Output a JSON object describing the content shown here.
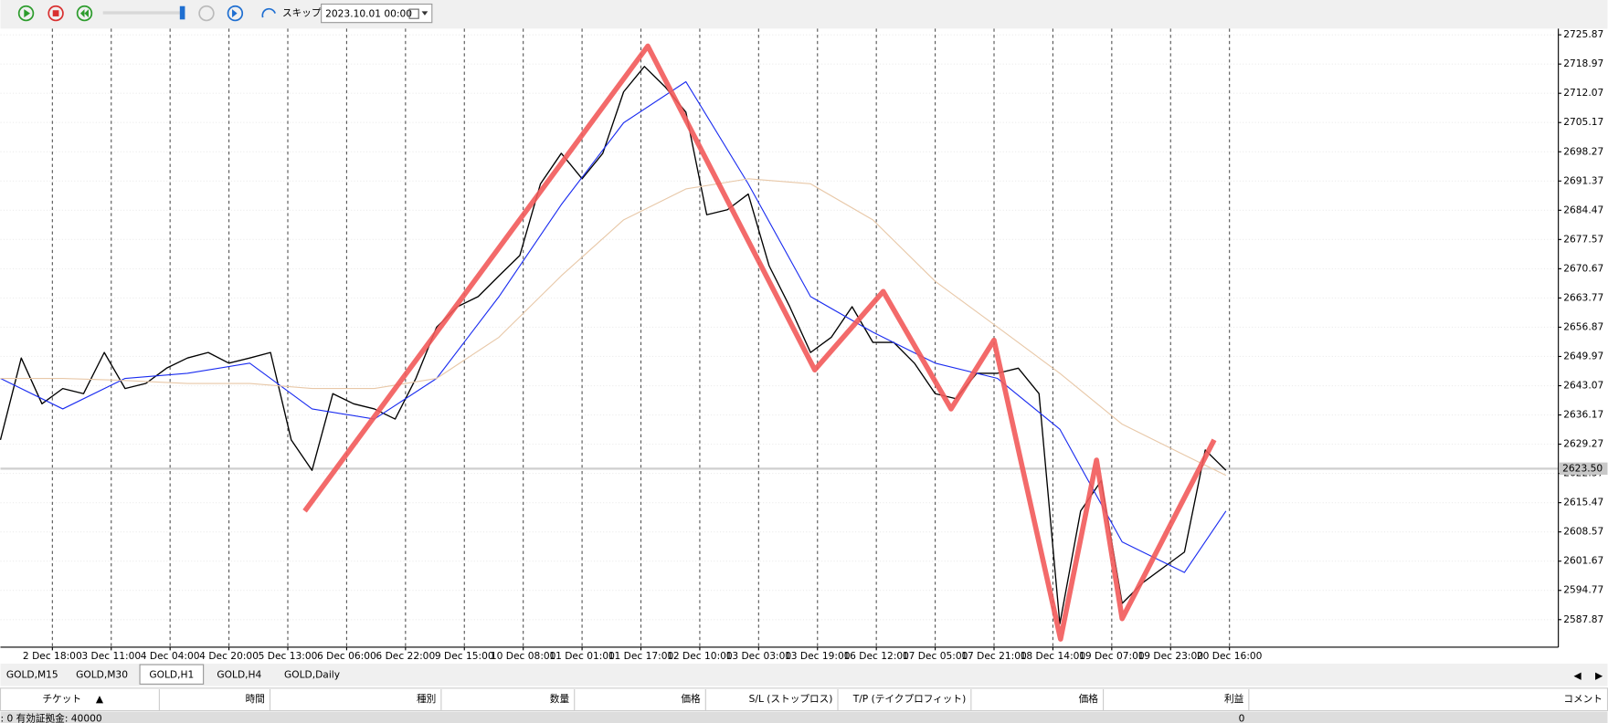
{
  "toolbar": {
    "skip": "スキップ",
    "date": "2023.10.01 00:00"
  },
  "chart_data": {
    "type": "line",
    "grid": true,
    "xlim": [
      0,
      450
    ],
    "ylim": [
      2581.36,
      2727.32
    ],
    "xticks": [
      {
        "value": 15,
        "label": "2 Dec 18:00"
      },
      {
        "value": 32,
        "label": "3 Dec 11:00"
      },
      {
        "value": 49,
        "label": "4 Dec 04:00"
      },
      {
        "value": 66,
        "label": "4 Dec 20:00"
      },
      {
        "value": 83,
        "label": "5 Dec 13:00"
      },
      {
        "value": 100,
        "label": "6 Dec 06:00"
      },
      {
        "value": 117,
        "label": "6 Dec 22:00"
      },
      {
        "value": 134,
        "label": "9 Dec 15:00"
      },
      {
        "value": 151,
        "label": "10 Dec 08:00"
      },
      {
        "value": 168,
        "label": "11 Dec 01:00"
      },
      {
        "value": 185,
        "label": "11 Dec 17:00"
      },
      {
        "value": 202,
        "label": "12 Dec 10:00"
      },
      {
        "value": 219,
        "label": "13 Dec 03:00"
      },
      {
        "value": 236,
        "label": "13 Dec 19:00"
      },
      {
        "value": 253,
        "label": "16 Dec 12:00"
      },
      {
        "value": 270,
        "label": "17 Dec 05:00"
      },
      {
        "value": 287,
        "label": "17 Dec 21:00"
      },
      {
        "value": 304,
        "label": "18 Dec 14:00"
      },
      {
        "value": 321,
        "label": "19 Dec 07:00"
      },
      {
        "value": 338,
        "label": "19 Dec 23:00"
      },
      {
        "value": 355,
        "label": "20 Dec 16:00"
      }
    ],
    "yticks": [
      2725.87,
      2718.97,
      2712.07,
      2705.17,
      2698.27,
      2691.37,
      2684.47,
      2677.57,
      2670.67,
      2663.77,
      2656.87,
      2649.97,
      2643.07,
      2636.17,
      2629.27,
      2622.37,
      2615.47,
      2608.57,
      2601.67,
      2594.77,
      2587.87
    ],
    "current_price": {
      "value": 2623.5,
      "label": "2623.50"
    },
    "series": [
      {
        "color": "#000000",
        "x": [
          0,
          6,
          12,
          18,
          24,
          30,
          36,
          42,
          48,
          54,
          60,
          66,
          72,
          78,
          84,
          90,
          96,
          102,
          108,
          114,
          120,
          126,
          132,
          138,
          144,
          150,
          156,
          162,
          168,
          174,
          180,
          186,
          192,
          198,
          204,
          210,
          216,
          222,
          228,
          234,
          240,
          246,
          252,
          258,
          264,
          270,
          276,
          282,
          288,
          294,
          300,
          306,
          312,
          318,
          324,
          330,
          336,
          342,
          348,
          354
        ],
        "values": [
          2630.3,
          2649.6,
          2638.8,
          2642.4,
          2641.2,
          2650.9,
          2642.4,
          2643.6,
          2647.2,
          2649.6,
          2650.9,
          2648.4,
          2649.6,
          2650.9,
          2630.3,
          2623.1,
          2641.2,
          2638.8,
          2637.6,
          2635.2,
          2644.8,
          2656.9,
          2661.7,
          2664.1,
          2669.0,
          2673.8,
          2690.7,
          2697.9,
          2691.9,
          2697.9,
          2712.4,
          2718.4,
          2713.6,
          2707.6,
          2683.4,
          2684.6,
          2688.3,
          2671.4,
          2661.7,
          2650.9,
          2654.5,
          2661.7,
          2653.3,
          2653.3,
          2648.4,
          2641.2,
          2640.0,
          2646.0,
          2646.0,
          2647.2,
          2641.2,
          2586.9,
          2613.5,
          2620.7,
          2591.7,
          2596.6,
          2600.2,
          2603.8,
          2627.9,
          2623.1
        ]
      },
      {
        "color": "#1a2cf0",
        "x": [
          0,
          18,
          36,
          54,
          72,
          90,
          108,
          126,
          144,
          162,
          180,
          198,
          216,
          234,
          252,
          270,
          288,
          306,
          324,
          342,
          354
        ],
        "values": [
          2644.8,
          2637.6,
          2644.8,
          2646.0,
          2648.4,
          2637.6,
          2635.2,
          2644.8,
          2664.1,
          2685.8,
          2705.1,
          2714.8,
          2690.7,
          2664.1,
          2655.7,
          2648.4,
          2644.8,
          2632.8,
          2606.2,
          2599.0,
          2613.5
        ]
      },
      {
        "color": "#e8c8a8",
        "x": [
          0,
          18,
          36,
          54,
          72,
          90,
          108,
          126,
          144,
          162,
          180,
          198,
          216,
          234,
          252,
          270,
          288,
          306,
          324,
          342,
          354
        ],
        "values": [
          2644.8,
          2644.8,
          2644.3,
          2643.6,
          2643.6,
          2642.4,
          2642.4,
          2644.8,
          2654.5,
          2669.0,
          2682.2,
          2689.5,
          2691.9,
          2690.7,
          2682.2,
          2667.7,
          2656.9,
          2646.0,
          2634.0,
          2626.7,
          2621.9
        ]
      },
      {
        "color": "#f25a5a",
        "x": [
          87.9,
          187.0,
          235.2,
          255.0,
          274.6,
          287.0,
          306.2,
          316.6,
          324.0,
          350.6
        ],
        "values": [
          2613.5,
          2723.2,
          2646.8,
          2665.3,
          2637.6,
          2653.8,
          2583.3,
          2625.5,
          2588.1,
          2630.3
        ]
      }
    ]
  },
  "tabs": [
    "GOLD,M15",
    "GOLD,M30",
    "GOLD,H1",
    "GOLD,H4",
    "GOLD,Daily"
  ],
  "active_tab": 2,
  "table": {
    "headers": [
      "チケット",
      "時間",
      "種別",
      "数量",
      "価格",
      "S/L (ストップロス)",
      "T/P (テイクプロフィット)",
      "価格",
      "利益",
      "コメント"
    ],
    "footer": {
      "balance": ": 0  有効証拠金: 40000",
      "profit": "0"
    }
  }
}
